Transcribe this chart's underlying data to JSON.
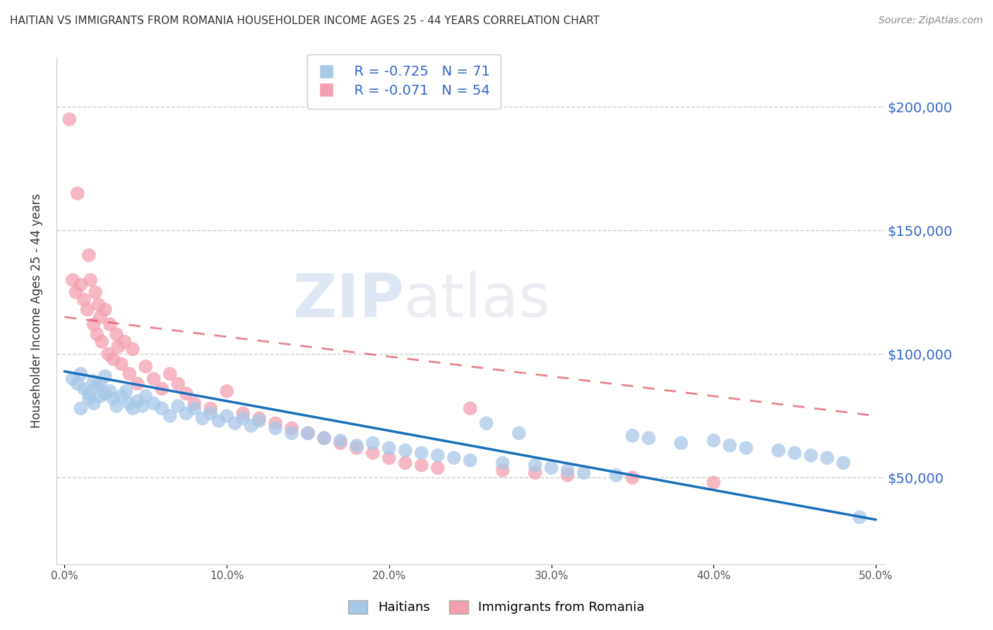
{
  "title": "HAITIAN VS IMMIGRANTS FROM ROMANIA HOUSEHOLDER INCOME AGES 25 - 44 YEARS CORRELATION CHART",
  "source": "Source: ZipAtlas.com",
  "ylabel": "Householder Income Ages 25 - 44 years",
  "yticks": [
    50000,
    100000,
    150000,
    200000
  ],
  "xlim": [
    0.0,
    0.5
  ],
  "ylim": [
    15000,
    220000
  ],
  "legend_blue_r": "R = -0.725",
  "legend_blue_n": "N = 71",
  "legend_pink_r": "R = -0.071",
  "legend_pink_n": "N = 54",
  "blue_color": "#a8c8e8",
  "pink_color": "#f4a0b0",
  "blue_line_color": "#1a6fba",
  "pink_line_color": "#e05060",
  "legend_label_blue": "Haitians",
  "legend_label_pink": "Immigrants from Romania",
  "blue_line_x0": 0.0,
  "blue_line_y0": 93000,
  "blue_line_x1": 0.5,
  "blue_line_y1": 33000,
  "pink_line_x0": 0.0,
  "pink_line_y0": 115000,
  "pink_line_x1": 0.5,
  "pink_line_y1": 75000,
  "blue_x": [
    0.005,
    0.008,
    0.01,
    0.012,
    0.015,
    0.018,
    0.02,
    0.022,
    0.025,
    0.028,
    0.01,
    0.015,
    0.018,
    0.022,
    0.025,
    0.03,
    0.032,
    0.035,
    0.038,
    0.04,
    0.042,
    0.045,
    0.048,
    0.05,
    0.055,
    0.06,
    0.065,
    0.07,
    0.075,
    0.08,
    0.085,
    0.09,
    0.095,
    0.1,
    0.105,
    0.11,
    0.115,
    0.12,
    0.13,
    0.14,
    0.15,
    0.16,
    0.17,
    0.18,
    0.19,
    0.2,
    0.21,
    0.22,
    0.23,
    0.24,
    0.25,
    0.26,
    0.27,
    0.28,
    0.29,
    0.3,
    0.31,
    0.32,
    0.34,
    0.35,
    0.36,
    0.38,
    0.4,
    0.41,
    0.42,
    0.44,
    0.45,
    0.46,
    0.47,
    0.48,
    0.49
  ],
  "blue_y": [
    90000,
    88000,
    92000,
    86000,
    84000,
    89000,
    87000,
    83000,
    91000,
    85000,
    78000,
    82000,
    80000,
    88000,
    84000,
    82000,
    79000,
    83000,
    85000,
    80000,
    78000,
    81000,
    79000,
    83000,
    80000,
    78000,
    75000,
    79000,
    76000,
    78000,
    74000,
    76000,
    73000,
    75000,
    72000,
    74000,
    71000,
    73000,
    70000,
    68000,
    68000,
    66000,
    65000,
    63000,
    64000,
    62000,
    61000,
    60000,
    59000,
    58000,
    57000,
    72000,
    56000,
    68000,
    55000,
    54000,
    53000,
    52000,
    51000,
    67000,
    66000,
    64000,
    65000,
    63000,
    62000,
    61000,
    60000,
    59000,
    58000,
    56000,
    34000
  ],
  "pink_x": [
    0.003,
    0.005,
    0.007,
    0.008,
    0.01,
    0.012,
    0.014,
    0.015,
    0.016,
    0.018,
    0.019,
    0.02,
    0.021,
    0.022,
    0.023,
    0.025,
    0.027,
    0.028,
    0.03,
    0.032,
    0.033,
    0.035,
    0.037,
    0.04,
    0.042,
    0.045,
    0.05,
    0.055,
    0.06,
    0.065,
    0.07,
    0.075,
    0.08,
    0.09,
    0.1,
    0.11,
    0.12,
    0.13,
    0.14,
    0.15,
    0.16,
    0.17,
    0.18,
    0.19,
    0.2,
    0.21,
    0.22,
    0.23,
    0.25,
    0.27,
    0.29,
    0.31,
    0.35,
    0.4
  ],
  "pink_y": [
    195000,
    130000,
    125000,
    165000,
    128000,
    122000,
    118000,
    140000,
    130000,
    112000,
    125000,
    108000,
    120000,
    115000,
    105000,
    118000,
    100000,
    112000,
    98000,
    108000,
    103000,
    96000,
    105000,
    92000,
    102000,
    88000,
    95000,
    90000,
    86000,
    92000,
    88000,
    84000,
    80000,
    78000,
    85000,
    76000,
    74000,
    72000,
    70000,
    68000,
    66000,
    64000,
    62000,
    60000,
    58000,
    56000,
    55000,
    54000,
    78000,
    53000,
    52000,
    51000,
    50000,
    48000
  ]
}
